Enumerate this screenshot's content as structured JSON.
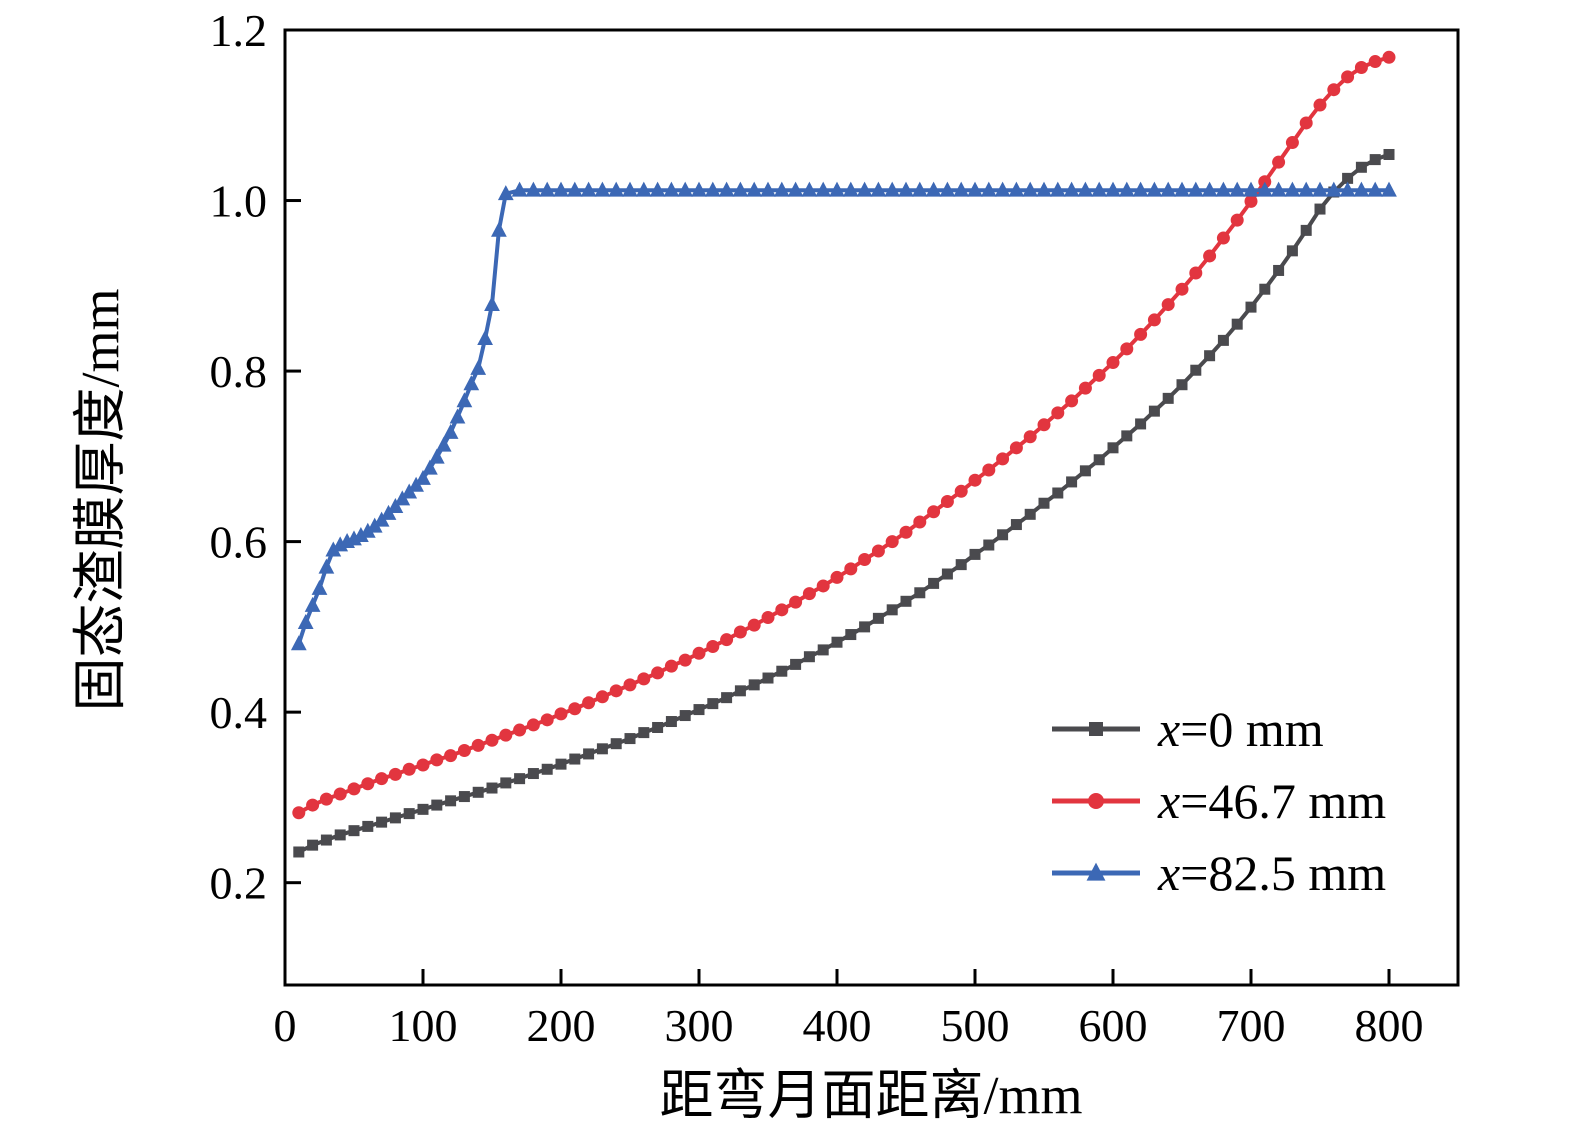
{
  "figure": {
    "background": "#ffffff",
    "axis_color": "#000000"
  },
  "legend": {
    "items": [
      {
        "var": "x",
        "rest": "=0 mm"
      },
      {
        "var": "x",
        "rest": "=46.7 mm"
      },
      {
        "var": "x",
        "rest": "=82.5 mm"
      }
    ]
  },
  "chart_data": {
    "type": "line",
    "title": "",
    "xlabel": "距弯月面距离/mm",
    "ylabel": "固态渣膜厚度/mm",
    "xlim": [
      0,
      850
    ],
    "ylim": [
      0.08,
      1.2
    ],
    "xticks": [
      0,
      100,
      200,
      300,
      400,
      500,
      600,
      700,
      800
    ],
    "yticks": [
      0.2,
      0.4,
      0.6,
      0.8,
      1.0,
      1.2
    ],
    "grid": false,
    "legend_position": "lower-right",
    "series": [
      {
        "name": "x=0 mm",
        "marker": "square",
        "color": "#4a4a4e",
        "x": [
          10,
          20,
          30,
          40,
          50,
          60,
          70,
          80,
          90,
          100,
          110,
          120,
          130,
          140,
          150,
          160,
          170,
          180,
          190,
          200,
          210,
          220,
          230,
          240,
          250,
          260,
          270,
          280,
          290,
          300,
          310,
          320,
          330,
          340,
          350,
          360,
          370,
          380,
          390,
          400,
          410,
          420,
          430,
          440,
          450,
          460,
          470,
          480,
          490,
          500,
          510,
          520,
          530,
          540,
          550,
          560,
          570,
          580,
          590,
          600,
          610,
          620,
          630,
          640,
          650,
          660,
          670,
          680,
          690,
          700,
          710,
          720,
          730,
          740,
          750,
          760,
          770,
          780,
          790,
          800
        ],
        "y": [
          0.236,
          0.244,
          0.25,
          0.256,
          0.261,
          0.266,
          0.271,
          0.276,
          0.281,
          0.286,
          0.291,
          0.296,
          0.301,
          0.306,
          0.311,
          0.317,
          0.322,
          0.328,
          0.333,
          0.339,
          0.345,
          0.351,
          0.357,
          0.363,
          0.369,
          0.376,
          0.382,
          0.389,
          0.396,
          0.403,
          0.41,
          0.417,
          0.425,
          0.432,
          0.44,
          0.448,
          0.456,
          0.465,
          0.473,
          0.482,
          0.491,
          0.5,
          0.51,
          0.52,
          0.53,
          0.54,
          0.551,
          0.562,
          0.573,
          0.585,
          0.596,
          0.608,
          0.62,
          0.632,
          0.645,
          0.657,
          0.67,
          0.683,
          0.696,
          0.71,
          0.724,
          0.738,
          0.753,
          0.768,
          0.784,
          0.801,
          0.818,
          0.836,
          0.855,
          0.875,
          0.896,
          0.918,
          0.941,
          0.965,
          0.99,
          1.01,
          1.026,
          1.039,
          1.048,
          1.054
        ]
      },
      {
        "name": "x=46.7 mm",
        "marker": "circle",
        "color": "#e2353f",
        "x": [
          10,
          20,
          30,
          40,
          50,
          60,
          70,
          80,
          90,
          100,
          110,
          120,
          130,
          140,
          150,
          160,
          170,
          180,
          190,
          200,
          210,
          220,
          230,
          240,
          250,
          260,
          270,
          280,
          290,
          300,
          310,
          320,
          330,
          340,
          350,
          360,
          370,
          380,
          390,
          400,
          410,
          420,
          430,
          440,
          450,
          460,
          470,
          480,
          490,
          500,
          510,
          520,
          530,
          540,
          550,
          560,
          570,
          580,
          590,
          600,
          610,
          620,
          630,
          640,
          650,
          660,
          670,
          680,
          690,
          700,
          710,
          720,
          730,
          740,
          750,
          760,
          770,
          780,
          790,
          800
        ],
        "y": [
          0.282,
          0.291,
          0.298,
          0.304,
          0.31,
          0.316,
          0.322,
          0.327,
          0.333,
          0.338,
          0.344,
          0.349,
          0.355,
          0.361,
          0.367,
          0.373,
          0.379,
          0.385,
          0.391,
          0.398,
          0.404,
          0.411,
          0.418,
          0.425,
          0.432,
          0.439,
          0.446,
          0.454,
          0.461,
          0.469,
          0.477,
          0.485,
          0.494,
          0.502,
          0.511,
          0.52,
          0.529,
          0.539,
          0.548,
          0.558,
          0.568,
          0.579,
          0.589,
          0.6,
          0.611,
          0.623,
          0.635,
          0.647,
          0.659,
          0.672,
          0.684,
          0.697,
          0.71,
          0.723,
          0.737,
          0.751,
          0.765,
          0.78,
          0.795,
          0.81,
          0.826,
          0.843,
          0.86,
          0.878,
          0.896,
          0.915,
          0.935,
          0.956,
          0.977,
          0.999,
          1.022,
          1.045,
          1.068,
          1.091,
          1.112,
          1.13,
          1.145,
          1.156,
          1.163,
          1.168
        ]
      },
      {
        "name": "x=82.5 mm",
        "marker": "triangle",
        "color": "#3c68b5",
        "x": [
          10,
          15,
          20,
          25,
          30,
          35,
          40,
          45,
          50,
          55,
          60,
          65,
          70,
          75,
          80,
          85,
          90,
          95,
          100,
          105,
          110,
          115,
          120,
          125,
          130,
          135,
          140,
          145,
          150,
          155,
          160,
          170,
          180,
          190,
          200,
          210,
          220,
          230,
          240,
          250,
          260,
          270,
          280,
          290,
          300,
          310,
          320,
          330,
          340,
          350,
          360,
          370,
          380,
          390,
          400,
          410,
          420,
          430,
          440,
          450,
          460,
          470,
          480,
          490,
          500,
          510,
          520,
          530,
          540,
          550,
          560,
          570,
          580,
          590,
          600,
          610,
          620,
          630,
          640,
          650,
          660,
          670,
          680,
          690,
          700,
          710,
          720,
          730,
          740,
          750,
          760,
          770,
          780,
          790,
          800
        ],
        "y": [
          0.48,
          0.505,
          0.525,
          0.545,
          0.57,
          0.59,
          0.596,
          0.6,
          0.603,
          0.607,
          0.612,
          0.618,
          0.625,
          0.633,
          0.641,
          0.65,
          0.658,
          0.666,
          0.674,
          0.686,
          0.699,
          0.713,
          0.728,
          0.746,
          0.765,
          0.785,
          0.803,
          0.838,
          0.878,
          0.965,
          1.008,
          1.012,
          1.012,
          1.012,
          1.012,
          1.012,
          1.012,
          1.012,
          1.012,
          1.012,
          1.012,
          1.012,
          1.012,
          1.012,
          1.012,
          1.012,
          1.012,
          1.012,
          1.012,
          1.012,
          1.012,
          1.012,
          1.012,
          1.012,
          1.012,
          1.012,
          1.012,
          1.012,
          1.012,
          1.012,
          1.012,
          1.012,
          1.012,
          1.012,
          1.012,
          1.012,
          1.012,
          1.012,
          1.012,
          1.012,
          1.012,
          1.012,
          1.012,
          1.012,
          1.012,
          1.012,
          1.012,
          1.012,
          1.012,
          1.012,
          1.012,
          1.012,
          1.012,
          1.012,
          1.012,
          1.012,
          1.012,
          1.012,
          1.012,
          1.012,
          1.012,
          1.012,
          1.012,
          1.012,
          1.012
        ]
      }
    ]
  }
}
